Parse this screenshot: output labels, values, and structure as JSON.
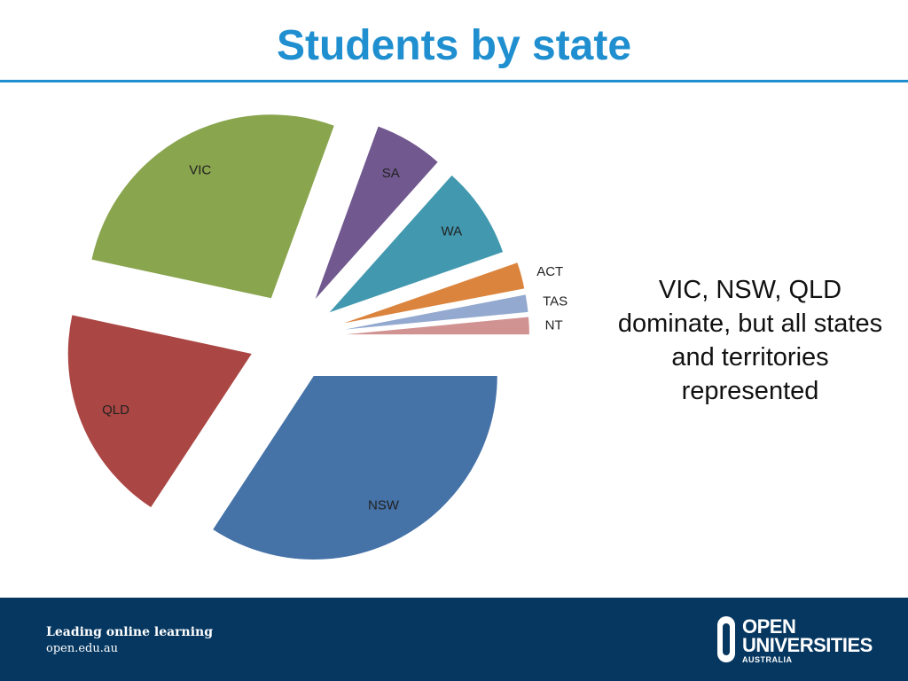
{
  "slide": {
    "title": "Students by state",
    "note": "VIC, NSW, QLD dominate, but all states and territories represented"
  },
  "footer": {
    "tagline": "Leading online learning",
    "url": "open.edu.au",
    "logo_line1": "OPEN",
    "logo_line2": "UNIVERSITIES",
    "logo_line3": "AUSTRALIA"
  },
  "chart_data": {
    "type": "pie",
    "exploded": true,
    "title": "",
    "categories": [
      "NSW",
      "QLD",
      "VIC",
      "SA",
      "WA",
      "ACT",
      "TAS",
      "NT"
    ],
    "values": [
      34,
      19,
      27,
      6,
      8,
      2.3,
      1.5,
      1.5
    ],
    "colors": [
      "#4572a7",
      "#aa4643",
      "#89a54e",
      "#71588f",
      "#4198af",
      "#db843d",
      "#93a9cf",
      "#d19392"
    ],
    "legend": "none"
  }
}
